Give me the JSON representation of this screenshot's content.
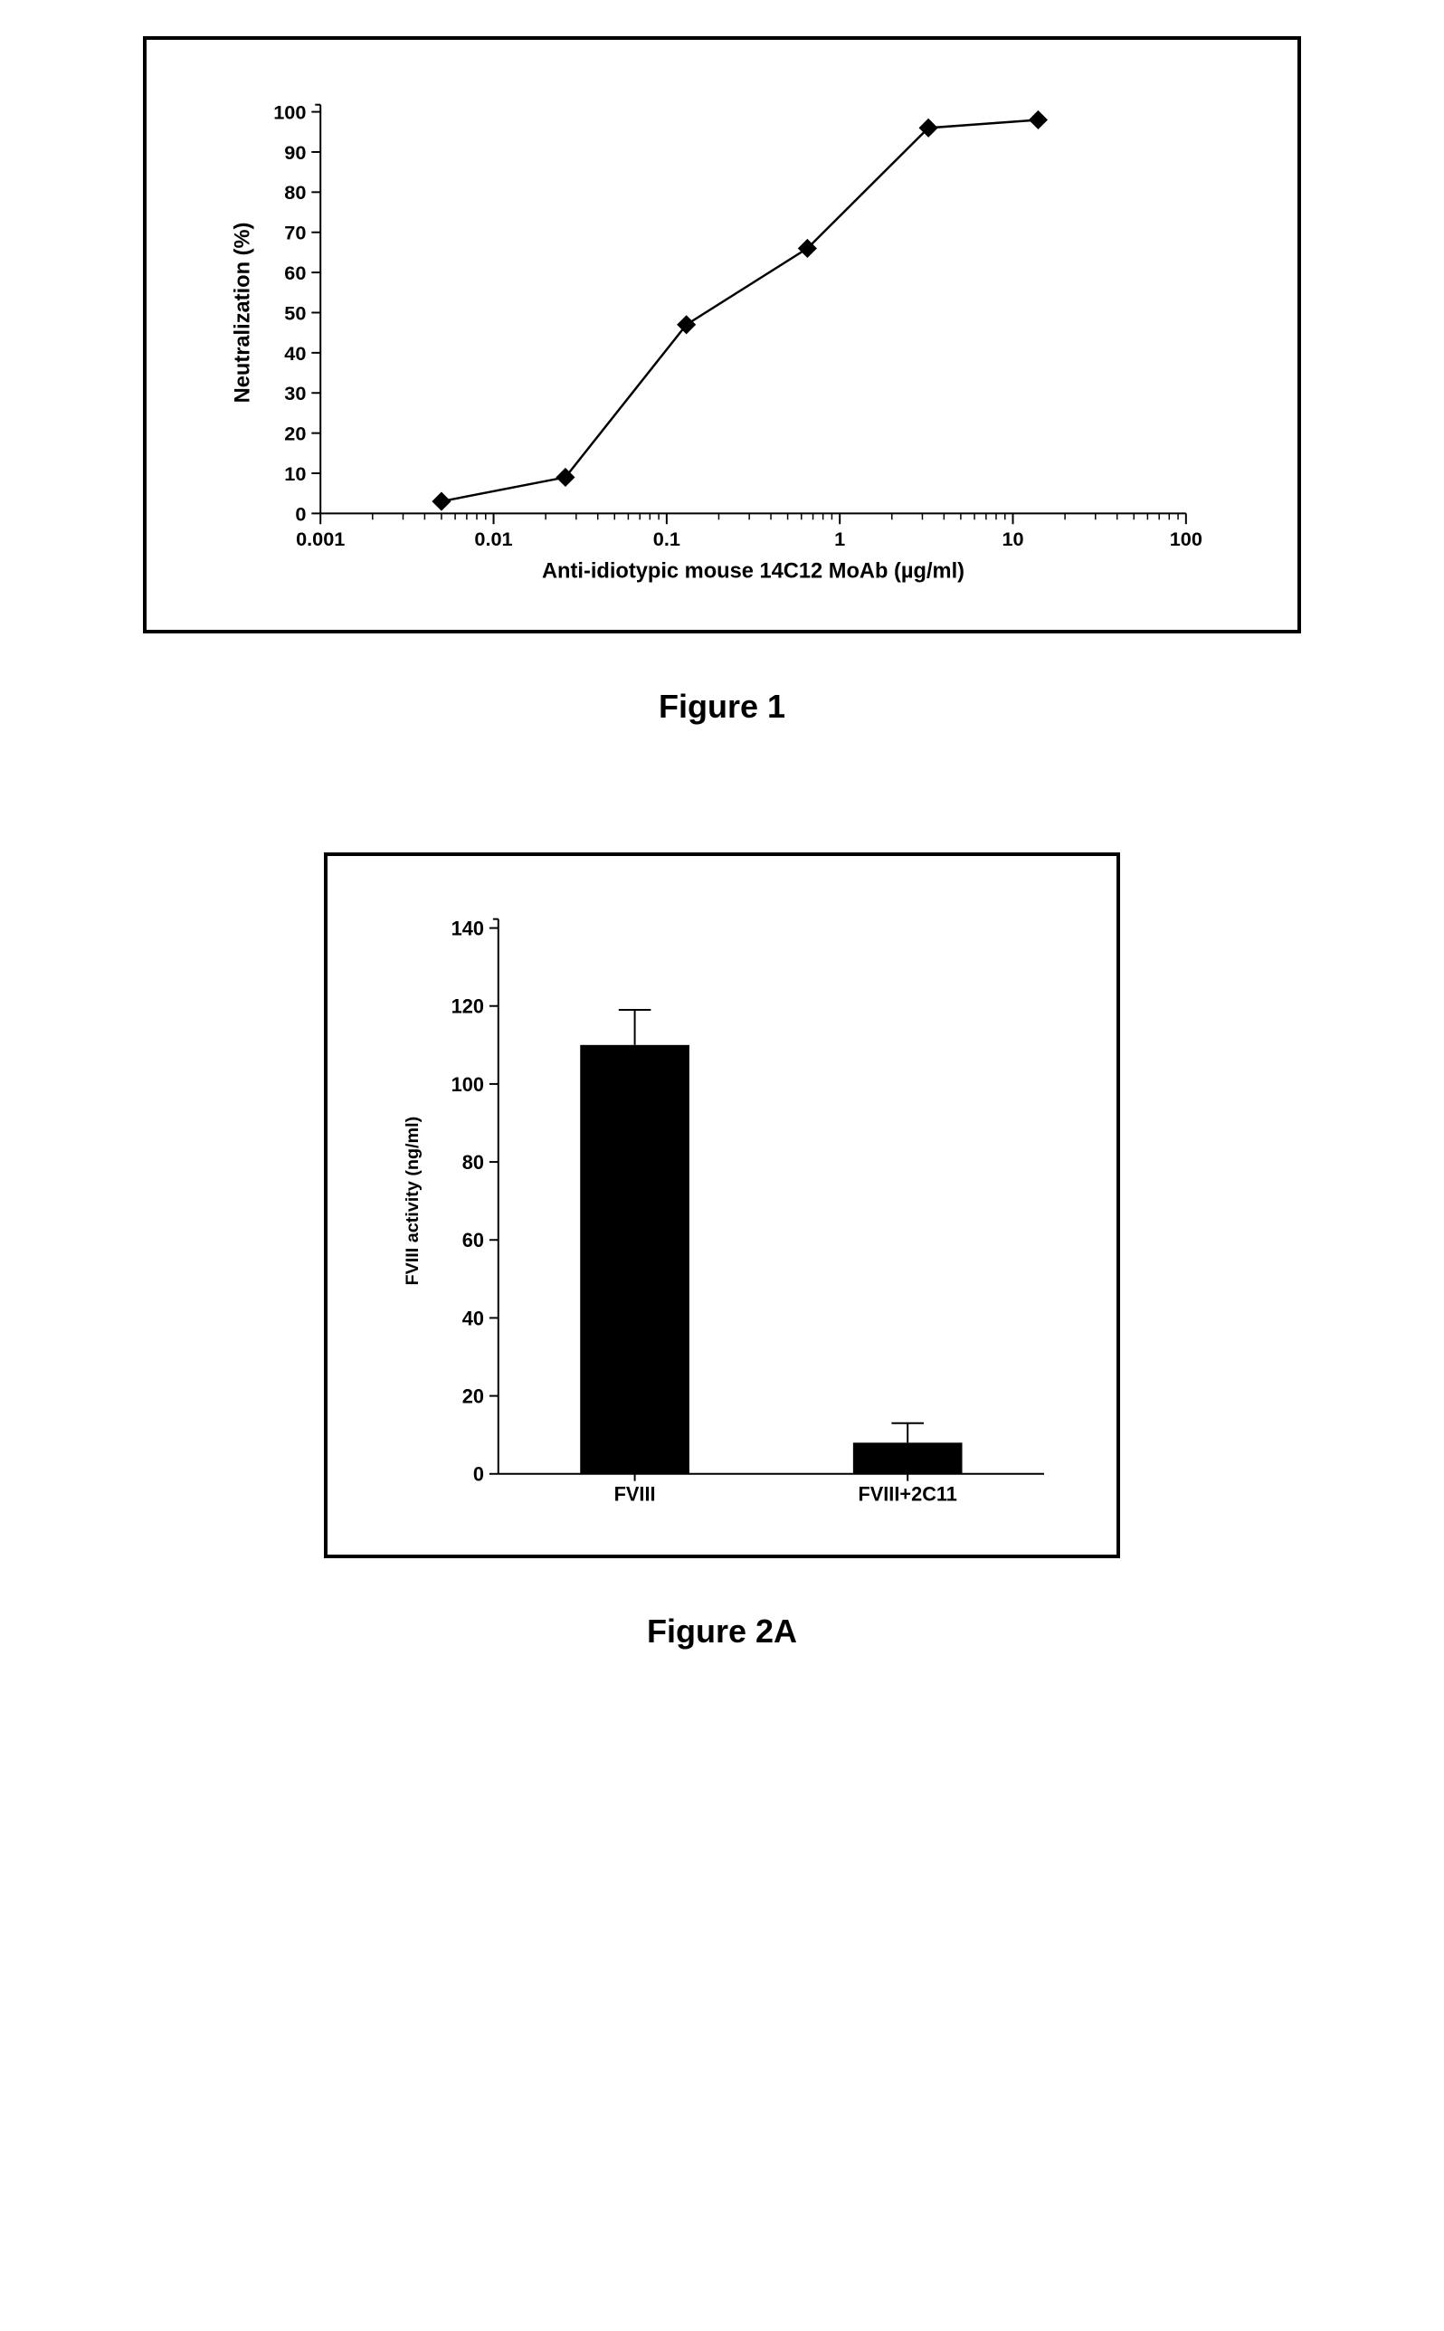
{
  "figure1": {
    "type": "line",
    "caption": "Figure 1",
    "x_label": "Anti-idiotypic mouse 14C12 MoAb (µg/ml)",
    "y_label": "Neutralization (%)",
    "x_scale": "log",
    "xlim": [
      0.001,
      100
    ],
    "ylim": [
      0,
      100
    ],
    "ytick_step": 10,
    "x_ticks": [
      0.001,
      0.01,
      0.1,
      1,
      10,
      100
    ],
    "x_tick_labels": [
      "0.001",
      "0.01",
      "0.1",
      "1",
      "10",
      "100"
    ],
    "series": {
      "x": [
        0.005,
        0.026,
        0.13,
        0.65,
        3.25,
        14
      ],
      "y": [
        3,
        9,
        47,
        66,
        96,
        98
      ]
    },
    "marker": "diamond",
    "marker_color": "#000000",
    "line_color": "#000000",
    "line_width": 2.5,
    "marker_size": 10,
    "background_color": "#ffffff"
  },
  "figure2a": {
    "type": "bar",
    "caption": "Figure 2A",
    "y_label": "FVIII activity (ng/ml)",
    "ylim": [
      0,
      140
    ],
    "ytick_step": 20,
    "categories": [
      "FVIII",
      "FVIII+2C11"
    ],
    "values": [
      110,
      8
    ],
    "errors": [
      9,
      5
    ],
    "bar_color": "#000000",
    "bar_width": 0.4,
    "background_color": "#ffffff",
    "error_cap_width": 18
  }
}
